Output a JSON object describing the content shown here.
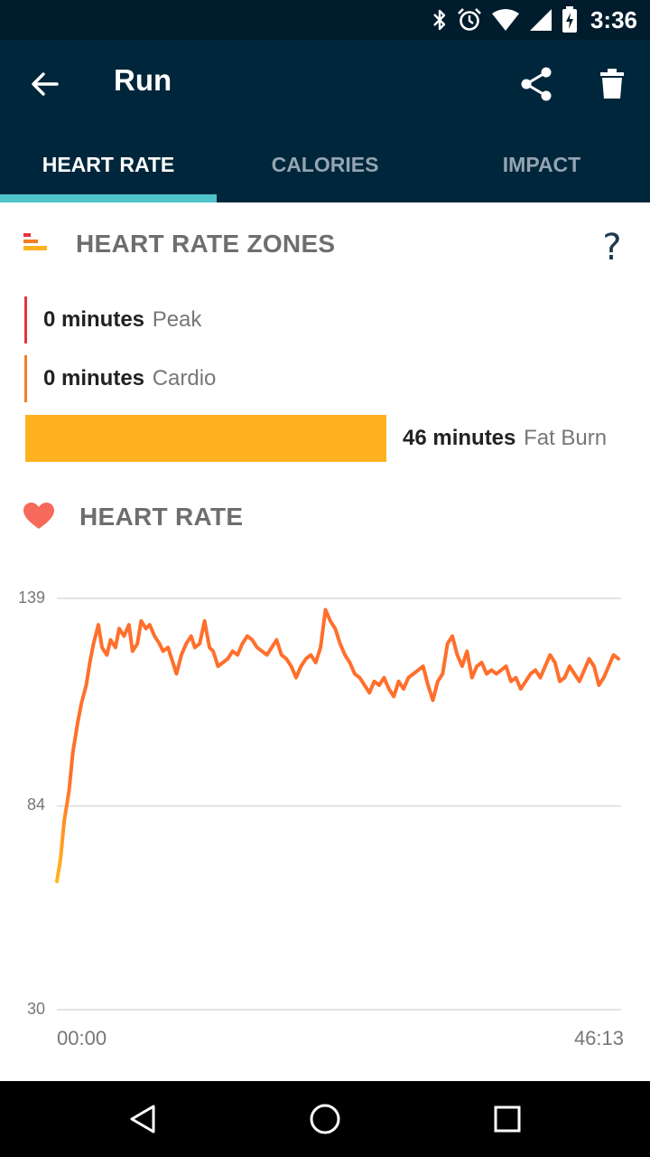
{
  "status_bar": {
    "time": "3:36",
    "icons": [
      "bluetooth-icon",
      "alarm-icon",
      "wifi-icon",
      "cellular-signal-icon",
      "battery-charging-icon"
    ]
  },
  "app_bar": {
    "title": "Run",
    "back_icon": "arrow-back-icon",
    "share_icon": "share-icon",
    "delete_icon": "trash-icon"
  },
  "tabs": [
    {
      "label": "HEART RATE",
      "active": true
    },
    {
      "label": "CALORIES",
      "active": false
    },
    {
      "label": "IMPACT",
      "active": false
    }
  ],
  "zones": {
    "title": "HEART RATE ZONES",
    "help": "?",
    "items": [
      {
        "minutes": "0 minutes",
        "label": "Peak",
        "color": "#e8323c"
      },
      {
        "minutes": "0 minutes",
        "label": "Cardio",
        "color": "#f27d22"
      },
      {
        "minutes": "46 minutes",
        "label": "Fat Burn",
        "color": "#ffb21f"
      }
    ]
  },
  "heart_rate": {
    "title": "HEART RATE"
  },
  "chart_data": {
    "type": "line",
    "title": "",
    "xlabel": "",
    "ylabel": "",
    "x_tick_labels": [
      "00:00",
      "46:13"
    ],
    "y_ticks": [
      139,
      84,
      30
    ],
    "ylim": [
      30,
      139
    ],
    "xlim_minutes": [
      0,
      46.22
    ],
    "grid": true,
    "gradient_colors": [
      "#ffc21a",
      "#ff6f2c"
    ],
    "series": [
      {
        "x": [
          0,
          0.3,
          0.6,
          1.0,
          1.3,
          1.7,
          2.0,
          2.4,
          2.7,
          3.0,
          3.4,
          3.7,
          4.1,
          4.4,
          4.8,
          5.1,
          5.5,
          5.9,
          6.2,
          6.6,
          6.9,
          7.3,
          7.6,
          8.0,
          8.4,
          8.7,
          9.1,
          9.5,
          9.8,
          10.2,
          10.6,
          11.0,
          11.3,
          11.7,
          12.1,
          12.5,
          12.8,
          13.2,
          13.6,
          14.0,
          14.4,
          14.8,
          15.2,
          15.6,
          16.0,
          16.4,
          16.8,
          17.2,
          17.6,
          18.0,
          18.4,
          18.8,
          19.2,
          19.6,
          20.0,
          20.4,
          20.8,
          21.2,
          21.6,
          22.0,
          22.4,
          22.8,
          23.2,
          23.6,
          24.0,
          24.4,
          24.8,
          25.2,
          25.6,
          26.0,
          26.4,
          26.8,
          27.2,
          27.6,
          28.0,
          28.4,
          28.8,
          29.2,
          29.6,
          30.0,
          30.4,
          30.8,
          31.2,
          31.6,
          32.0,
          32.4,
          32.8,
          33.2,
          33.6,
          34.0,
          34.4,
          34.8,
          35.2,
          35.6,
          36.0,
          36.4,
          36.8,
          37.2,
          37.6,
          38.0,
          38.4,
          38.8,
          39.2,
          39.6,
          40.0,
          40.4,
          40.8,
          41.2,
          41.6,
          42.0,
          42.4,
          42.8,
          43.2,
          43.6,
          44.0,
          44.4,
          44.8,
          45.2,
          45.6,
          46.0
        ],
        "values": [
          64,
          70,
          80,
          88,
          98,
          106,
          111,
          116,
          122,
          127,
          132,
          126,
          124,
          128,
          126,
          131,
          129,
          132,
          125,
          127,
          133,
          131,
          132,
          129,
          127,
          125,
          126,
          122,
          119,
          124,
          127,
          129,
          126,
          127,
          133,
          126,
          125,
          121,
          122,
          123,
          125,
          124,
          127,
          129,
          128,
          126,
          125,
          124,
          126,
          128,
          124,
          123,
          121,
          118,
          121,
          123,
          124,
          122,
          126,
          136,
          133,
          131,
          127,
          124,
          122,
          119,
          118,
          116,
          114,
          117,
          116,
          118,
          115,
          113,
          117,
          115,
          118,
          119,
          120,
          121,
          116,
          112,
          117,
          119,
          127,
          129,
          124,
          121,
          125,
          118,
          121,
          122,
          119,
          120,
          119,
          120,
          121,
          117,
          118,
          115,
          117,
          119,
          120,
          118,
          121,
          124,
          122,
          117,
          118,
          121,
          119,
          117,
          120,
          123,
          121,
          116,
          118,
          121,
          124,
          123
        ]
      }
    ]
  },
  "nav_bar": {
    "icons": [
      "nav-back-icon",
      "nav-home-icon",
      "nav-recents-icon"
    ]
  }
}
